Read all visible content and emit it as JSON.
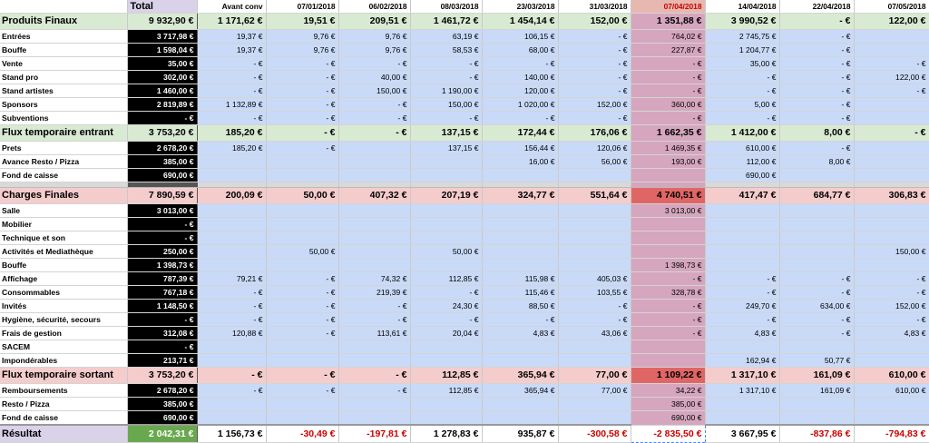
{
  "columns": [
    "Total",
    "Avant conv",
    "07/01/2018",
    "06/02/2018",
    "08/03/2018",
    "23/03/2018",
    "31/03/2018",
    "07/04/2018",
    "14/04/2018",
    "22/04/2018",
    "07/05/2018"
  ],
  "rows": [
    {
      "type": "sum-green",
      "label": "Produits Finaux",
      "values": [
        "9 932,90 €",
        "1 171,62 €",
        "19,51 €",
        "209,51 €",
        "1 461,72 €",
        "1 454,14 €",
        "152,00 €",
        "1 351,88 €",
        "3 990,52 €",
        "- €",
        "122,00 €"
      ]
    },
    {
      "type": "item",
      "label": "Entrées",
      "values": [
        "3 717,98 €",
        "19,37 €",
        "9,76 €",
        "9,76 €",
        "63,19 €",
        "106,15 €",
        "- €",
        "764,02 €",
        "2 745,75 €",
        "- €",
        ""
      ]
    },
    {
      "type": "item",
      "label": "Bouffe",
      "values": [
        "1 598,04 €",
        "19,37 €",
        "9,76 €",
        "9,76 €",
        "58,53 €",
        "68,00 €",
        "- €",
        "227,87 €",
        "1 204,77 €",
        "- €",
        ""
      ]
    },
    {
      "type": "item",
      "label": "Vente",
      "values": [
        "35,00 €",
        "- €",
        "- €",
        "- €",
        "- €",
        "- €",
        "- €",
        "- €",
        "35,00 €",
        "- €",
        "- €"
      ]
    },
    {
      "type": "item",
      "label": "Stand pro",
      "values": [
        "302,00 €",
        "- €",
        "- €",
        "40,00 €",
        "- €",
        "140,00 €",
        "- €",
        "- €",
        "- €",
        "- €",
        "122,00 €"
      ]
    },
    {
      "type": "item",
      "label": "Stand artistes",
      "values": [
        "1 460,00 €",
        "- €",
        "- €",
        "150,00 €",
        "1 190,00 €",
        "120,00 €",
        "- €",
        "- €",
        "- €",
        "- €",
        "- €"
      ]
    },
    {
      "type": "item",
      "label": "Sponsors",
      "values": [
        "2 819,89 €",
        "1 132,89 €",
        "- €",
        "- €",
        "150,00 €",
        "1 020,00 €",
        "152,00 €",
        "360,00 €",
        "5,00 €",
        "- €",
        ""
      ]
    },
    {
      "type": "item",
      "label": "Subventions",
      "values": [
        "- €",
        "- €",
        "- €",
        "- €",
        "- €",
        "- €",
        "- €",
        "- €",
        "- €",
        "- €",
        ""
      ]
    },
    {
      "type": "sum-green",
      "label": "Flux temporaire entrant",
      "values": [
        "3 753,20 €",
        "185,20 €",
        "- €",
        "- €",
        "137,15 €",
        "172,44 €",
        "176,06 €",
        "1 662,35 €",
        "1 412,00 €",
        "8,00 €",
        "- €"
      ]
    },
    {
      "type": "item",
      "label": "Prets",
      "values": [
        "2 678,20 €",
        "185,20 €",
        "- €",
        "",
        "137,15 €",
        "156,44 €",
        "120,06 €",
        "1 469,35 €",
        "610,00 €",
        "- €",
        ""
      ]
    },
    {
      "type": "item",
      "label": "Avance Resto / Pizza",
      "values": [
        "385,00 €",
        "",
        "",
        "",
        "",
        "16,00 €",
        "56,00 €",
        "193,00 €",
        "112,00 €",
        "8,00 €",
        ""
      ]
    },
    {
      "type": "item",
      "label": "Fond de caisse",
      "values": [
        "690,00 €",
        "",
        "",
        "",
        "",
        "",
        "",
        "",
        "690,00 €",
        "",
        ""
      ]
    },
    {
      "type": "gap",
      "label": "",
      "values": [
        "",
        "",
        "",
        "",
        "",
        "",
        "",
        "",
        "",
        "",
        ""
      ]
    },
    {
      "type": "sum-red",
      "label": "Charges Finales",
      "values": [
        "7 890,59 €",
        "200,09 €",
        "50,00 €",
        "407,32 €",
        "207,19 €",
        "324,77 €",
        "551,64 €",
        "4 740,51 €",
        "417,47 €",
        "684,77 €",
        "306,83 €"
      ]
    },
    {
      "type": "item",
      "label": "Salle",
      "values": [
        "3 013,00 €",
        "",
        "",
        "",
        "",
        "",
        "",
        "3 013,00 €",
        "",
        "",
        ""
      ]
    },
    {
      "type": "item",
      "label": "Mobilier",
      "values": [
        "- €",
        "",
        "",
        "",
        "",
        "",
        "",
        "",
        "",
        "",
        ""
      ]
    },
    {
      "type": "item",
      "label": "Technique et son",
      "values": [
        "- €",
        "",
        "",
        "",
        "",
        "",
        "",
        "",
        "",
        "",
        ""
      ]
    },
    {
      "type": "item",
      "label": "Activités et Mediathèque",
      "values": [
        "250,00 €",
        "",
        "50,00 €",
        "",
        "50,00 €",
        "",
        "",
        "",
        "",
        "",
        "150,00 €"
      ]
    },
    {
      "type": "item",
      "label": "Bouffe",
      "values": [
        "1 398,73 €",
        "",
        "",
        "",
        "",
        "",
        "",
        "1 398,73 €",
        "",
        "",
        ""
      ]
    },
    {
      "type": "item",
      "label": "Affichage",
      "values": [
        "787,39 €",
        "79,21 €",
        "- €",
        "74,32 €",
        "112,85 €",
        "115,98 €",
        "405,03 €",
        "- €",
        "- €",
        "- €",
        "- €"
      ]
    },
    {
      "type": "item",
      "label": "Consommables",
      "values": [
        "767,18 €",
        "- €",
        "- €",
        "219,39 €",
        "- €",
        "115,46 €",
        "103,55 €",
        "328,78 €",
        "- €",
        "- €",
        "- €"
      ]
    },
    {
      "type": "item",
      "label": "Invités",
      "values": [
        "1 148,50 €",
        "- €",
        "- €",
        "- €",
        "24,30 €",
        "88,50 €",
        "- €",
        "- €",
        "249,70 €",
        "634,00 €",
        "152,00 €"
      ]
    },
    {
      "type": "item",
      "label": "Hygiène, sécurité, secours",
      "values": [
        "- €",
        "- €",
        "- €",
        "- €",
        "- €",
        "- €",
        "- €",
        "- €",
        "- €",
        "- €",
        "- €"
      ]
    },
    {
      "type": "item",
      "label": "Frais de gestion",
      "values": [
        "312,08 €",
        "120,88 €",
        "- €",
        "113,61 €",
        "20,04 €",
        "4,83 €",
        "43,06 €",
        "- €",
        "4,83 €",
        "- €",
        "4,83 €"
      ]
    },
    {
      "type": "item",
      "label": "SACEM",
      "values": [
        "- €",
        "",
        "",
        "",
        "",
        "",
        "",
        "",
        "",
        "",
        ""
      ]
    },
    {
      "type": "item",
      "label": "Impondérables",
      "values": [
        "213,71 €",
        "",
        "",
        "",
        "",
        "",
        "",
        "",
        "162,94 €",
        "50,77 €",
        ""
      ]
    },
    {
      "type": "sum-red",
      "label": "Flux temporaire sortant",
      "values": [
        "3 753,20 €",
        "- €",
        "- €",
        "- €",
        "112,85 €",
        "365,94 €",
        "77,00 €",
        "1 109,22 €",
        "1 317,10 €",
        "161,09 €",
        "610,00 €"
      ]
    },
    {
      "type": "item",
      "label": "Remboursements",
      "values": [
        "2 678,20 €",
        "- €",
        "- €",
        "- €",
        "112,85 €",
        "365,94 €",
        "77,00 €",
        "34,22 €",
        "1 317,10 €",
        "161,09 €",
        "610,00 €"
      ]
    },
    {
      "type": "item",
      "label": "Resto / Pizza",
      "values": [
        "385,00 €",
        "",
        "",
        "",
        "",
        "",
        "",
        "385,00 €",
        "",
        "",
        ""
      ]
    },
    {
      "type": "item",
      "label": "Fond de caisse",
      "values": [
        "690,00 €",
        "",
        "",
        "",
        "",
        "",
        "",
        "690,00 €",
        "",
        "",
        ""
      ]
    },
    {
      "type": "sum-purple",
      "label": "Résultat",
      "values": [
        "2 042,31 €",
        "1 156,73 €",
        "-30,49 €",
        "-197,81 €",
        "1 278,83 €",
        "935,87 €",
        "-300,58 €",
        "-2 835,50 €",
        "3 667,95 €",
        "-837,86 €",
        "-794,83 €"
      ]
    }
  ],
  "highlight_column": 7
}
